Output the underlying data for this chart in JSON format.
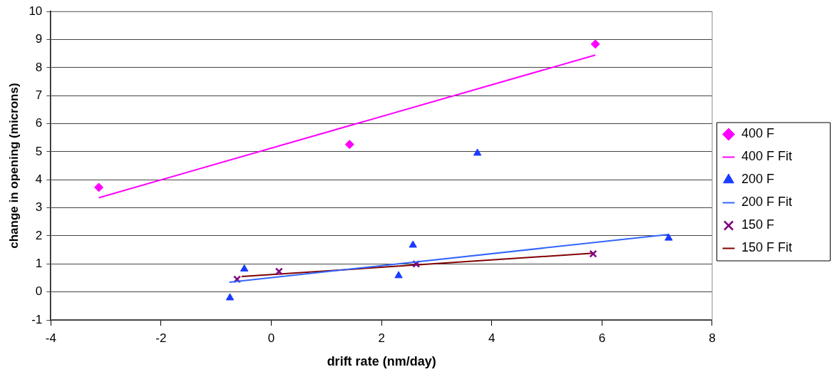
{
  "chart_data": {
    "type": "scatter",
    "xlabel": "drift rate (nm/day)",
    "ylabel": "change in opening (microns)",
    "xlim": [
      -4,
      8
    ],
    "xticks": [
      -4,
      -2,
      0,
      2,
      4,
      6,
      8
    ],
    "ylim": [
      -1,
      10
    ],
    "yticks": [
      -1,
      0,
      1,
      2,
      3,
      4,
      5,
      6,
      7,
      8,
      9,
      10
    ],
    "grid": "y",
    "legend": "right",
    "series": [
      {
        "name": "400 F",
        "marker": "diamond",
        "color": "#ff00ff",
        "x": [
          -3.13,
          1.42,
          5.88
        ],
        "values": [
          3.73,
          5.26,
          8.84
        ]
      },
      {
        "name": "400 F Fit",
        "type": "line",
        "marker": "none",
        "color": "#ff00ff",
        "x": [
          -3.13,
          5.88
        ],
        "values": [
          3.36,
          8.45
        ]
      },
      {
        "name": "200 F",
        "marker": "triangle",
        "color": "#1a3cff",
        "x": [
          -0.75,
          -0.49,
          2.31,
          2.57,
          3.74,
          7.21
        ],
        "values": [
          -0.21,
          0.82,
          0.58,
          1.67,
          4.95,
          1.92
        ]
      },
      {
        "name": "200 F Fit",
        "type": "line",
        "marker": "none",
        "color": "#3366ff",
        "x": [
          -0.76,
          7.21
        ],
        "values": [
          0.35,
          2.05
        ]
      },
      {
        "name": "150 F",
        "marker": "cross",
        "color": "#800080",
        "x": [
          -0.62,
          0.14,
          2.63,
          5.84
        ],
        "values": [
          0.45,
          0.73,
          1.0,
          1.36
        ]
      },
      {
        "name": "150 F Fit",
        "type": "line",
        "marker": "none",
        "color": "#800000",
        "x": [
          -0.54,
          5.84
        ],
        "values": [
          0.55,
          1.38
        ]
      }
    ]
  }
}
